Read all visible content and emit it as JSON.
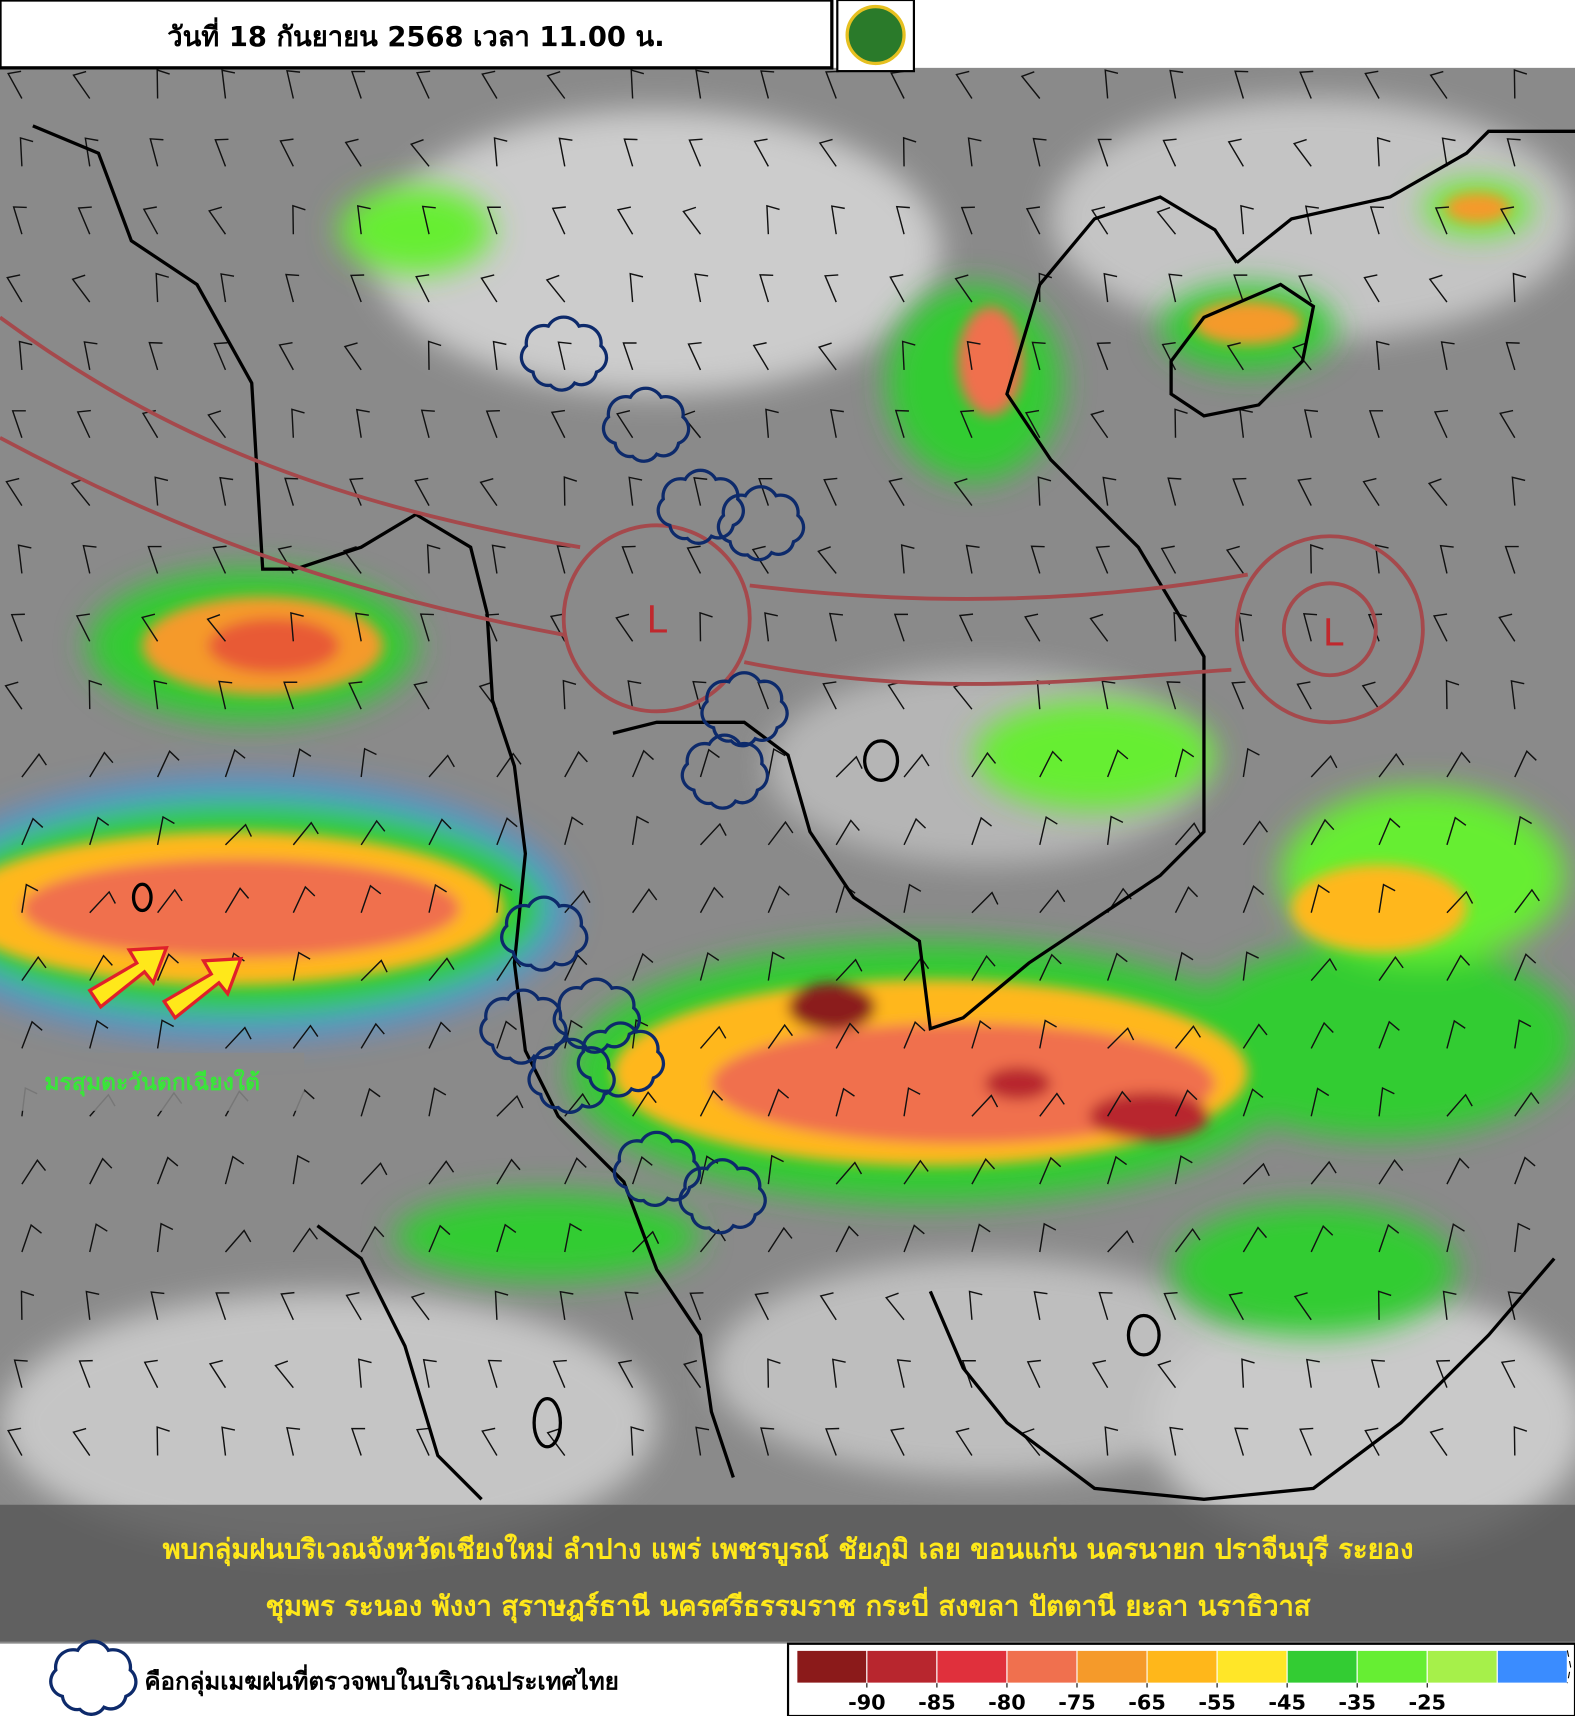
{
  "header": {
    "date_text": "วันที่ 18 กันยายน 2568 เวลา 11.00 น."
  },
  "map": {
    "monsoon_label": "มรสุมตะวันตกเฉียงใต้",
    "lows": [
      "L",
      "L"
    ]
  },
  "summary": {
    "lines": [
      "พบกลุ่มฝนบริเวณจังหวัดเชียงใหม่ ลำปาง แพร่ เพชรบูรณ์ ชัยภูมิ เลย ขอนแก่น นครนายก ปราจีนบุรี ระยอง",
      "ชุมพร ระนอง พังงา สุราษฎร์ธานี นครศรีธรรมราช กระบี่ สงขลา ปัตตานี ยะลา นราธิวาส"
    ]
  },
  "legend": {
    "cloud_note": "คือกลุ่มเมฆฝนที่ตรวจพบในบริเวณประเทศไทย",
    "colors": [
      "#8b1a1a",
      "#b8262e",
      "#e0303c",
      "#f0704e",
      "#f59a2a",
      "#ffb71a",
      "#ffe628",
      "#33cc33",
      "#66ee33",
      "#a6f04a",
      "#3a8cff"
    ],
    "ticks": [
      -90,
      -85,
      -80,
      -75,
      -65,
      -55,
      -45,
      -35,
      -25
    ]
  }
}
